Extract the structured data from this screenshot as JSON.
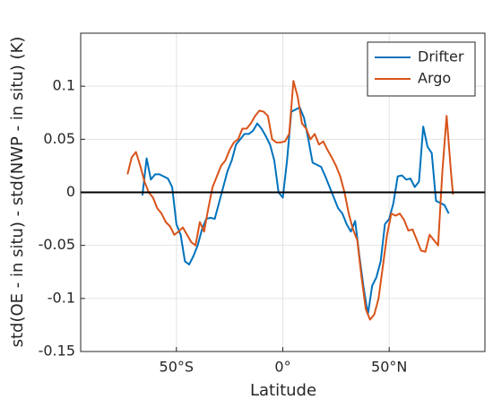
{
  "chart_data": {
    "type": "line",
    "xlabel": "Latitude",
    "ylabel": "std(OE - in situ) - std(NWP - in situ) (K)",
    "xlim": [
      -95,
      95
    ],
    "ylim": [
      -0.15,
      0.15
    ],
    "xticks": [
      {
        "value": -50,
        "label": "50°S"
      },
      {
        "value": 0,
        "label": "0°"
      },
      {
        "value": 50,
        "label": "50°N"
      }
    ],
    "yticks": [
      -0.15,
      -0.1,
      -0.05,
      0,
      0.05,
      0.1
    ],
    "grid": true,
    "reference_line": 0,
    "legend": "upper right",
    "series": [
      {
        "name": "Drifter",
        "color": "#0072bd",
        "x": [
          -66,
          -64,
          -62,
          -60,
          -58,
          -56,
          -54,
          -52,
          -50,
          -48,
          -46,
          -44,
          -42,
          -40,
          -38,
          -36,
          -34,
          -32,
          -30,
          -28,
          -26,
          -24,
          -22,
          -20,
          -18,
          -16,
          -14,
          -12,
          -10,
          -8,
          -6,
          -4,
          -2,
          0,
          2,
          4,
          6,
          8,
          10,
          12,
          14,
          16,
          18,
          20,
          22,
          24,
          26,
          28,
          30,
          32,
          34,
          36,
          38,
          40,
          42,
          44,
          46,
          48,
          50,
          52,
          54,
          56,
          58,
          60,
          62,
          64,
          66,
          68,
          70,
          72,
          74,
          76,
          78
        ],
        "values": [
          -0.003,
          0.032,
          0.012,
          0.017,
          0.017,
          0.015,
          0.013,
          0.005,
          -0.03,
          -0.04,
          -0.065,
          -0.068,
          -0.06,
          -0.05,
          -0.035,
          -0.025,
          -0.024,
          -0.025,
          -0.01,
          0.005,
          0.02,
          0.03,
          0.045,
          0.05,
          0.055,
          0.055,
          0.058,
          0.065,
          0.06,
          0.053,
          0.045,
          0.03,
          0,
          -0.005,
          0.03,
          0.076,
          0.078,
          0.08,
          0.07,
          0.05,
          0.028,
          0.026,
          0.024,
          0.015,
          0.005,
          -0.005,
          -0.015,
          -0.02,
          -0.03,
          -0.037,
          -0.027,
          -0.06,
          -0.09,
          -0.115,
          -0.088,
          -0.08,
          -0.065,
          -0.03,
          -0.025,
          -0.01,
          0.015,
          0.016,
          0.012,
          0.013,
          0.005,
          0.01,
          0.062,
          0.043,
          0.037,
          -0.008,
          -0.01,
          -0.012,
          -0.02
        ]
      },
      {
        "name": "Argo",
        "color": "#d95319",
        "x": [
          -73,
          -71,
          -69,
          -67,
          -65,
          -63,
          -61,
          -59,
          -57,
          -55,
          -53,
          -51,
          -49,
          -47,
          -45,
          -43,
          -41,
          -39,
          -37,
          -35,
          -33,
          -31,
          -29,
          -27,
          -25,
          -23,
          -21,
          -19,
          -17,
          -15,
          -13,
          -11,
          -9,
          -7,
          -5,
          -3,
          -1,
          1,
          3,
          5,
          7,
          9,
          11,
          13,
          15,
          17,
          19,
          21,
          23,
          25,
          27,
          29,
          31,
          33,
          35,
          37,
          39,
          41,
          43,
          45,
          47,
          49,
          51,
          53,
          55,
          57,
          59,
          61,
          63,
          65,
          67,
          69,
          71,
          73,
          75,
          77,
          79,
          80
        ],
        "values": [
          0.017,
          0.033,
          0.038,
          0.025,
          0.01,
          0,
          -0.005,
          -0.015,
          -0.02,
          -0.028,
          -0.032,
          -0.04,
          -0.037,
          -0.033,
          -0.04,
          -0.047,
          -0.05,
          -0.028,
          -0.037,
          -0.015,
          0.005,
          0.015,
          0.025,
          0.03,
          0.04,
          0.047,
          0.05,
          0.06,
          0.06,
          0.065,
          0.072,
          0.077,
          0.076,
          0.072,
          0.05,
          0.047,
          0.047,
          0.048,
          0.055,
          0.105,
          0.09,
          0.065,
          0.06,
          0.05,
          0.055,
          0.045,
          0.048,
          0.04,
          0.033,
          0.025,
          0.015,
          0,
          -0.02,
          -0.035,
          -0.045,
          -0.08,
          -0.11,
          -0.12,
          -0.115,
          -0.1,
          -0.07,
          -0.04,
          -0.02,
          -0.022,
          -0.02,
          -0.026,
          -0.036,
          -0.035,
          -0.045,
          -0.055,
          -0.056,
          -0.04,
          -0.045,
          -0.05,
          0.02,
          0.072,
          0.02,
          -0.002
        ]
      }
    ]
  }
}
